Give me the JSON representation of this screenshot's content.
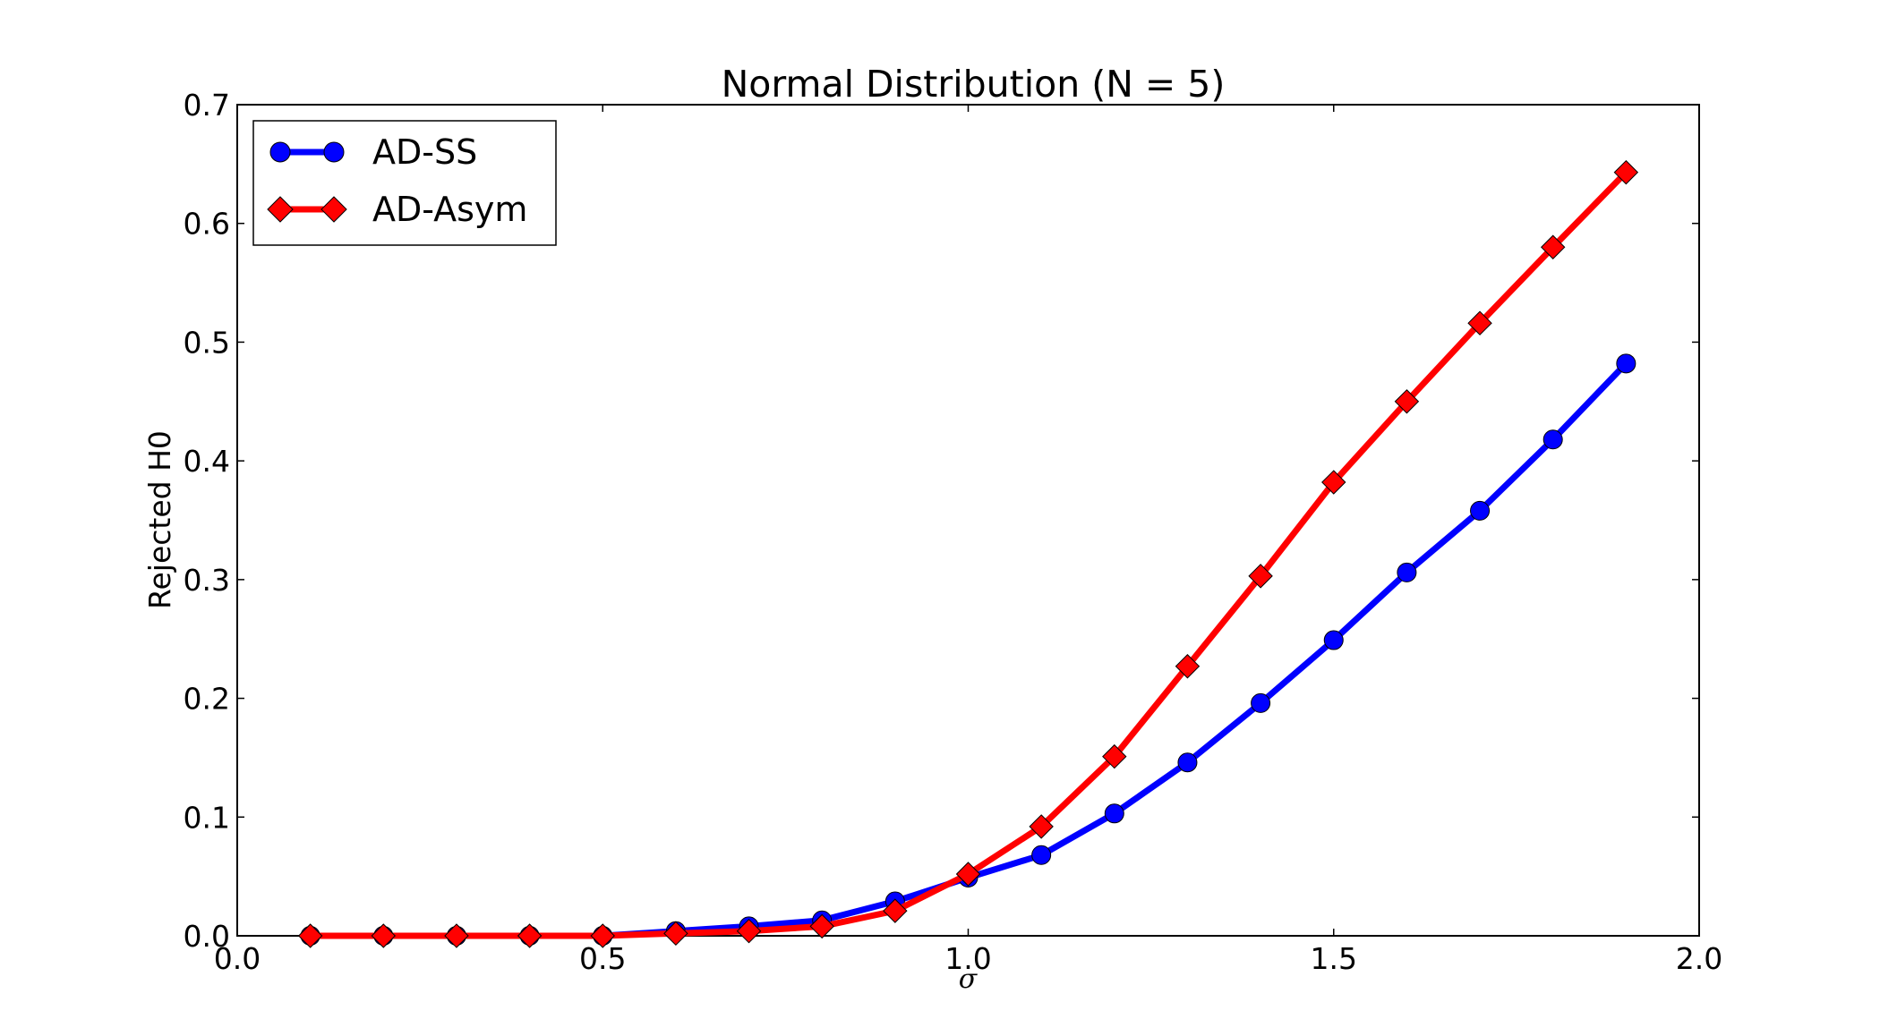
{
  "chart_data": {
    "type": "line",
    "title": "Normal Distribution (N = 5)",
    "xlabel": "σ",
    "ylabel": "Rejected H0",
    "xlim": [
      0.0,
      2.0
    ],
    "ylim": [
      0.0,
      0.7
    ],
    "xticks": [
      "0.0",
      "0.5",
      "1.0",
      "1.5",
      "2.0"
    ],
    "yticks": [
      "0.0",
      "0.1",
      "0.2",
      "0.3",
      "0.4",
      "0.5",
      "0.6",
      "0.7"
    ],
    "grid": false,
    "legend_position": "top-left",
    "x": [
      0.1,
      0.2,
      0.3,
      0.4,
      0.5,
      0.6,
      0.7,
      0.8,
      0.9,
      1.0,
      1.1,
      1.2,
      1.3,
      1.4,
      1.5,
      1.6,
      1.7,
      1.8,
      1.9
    ],
    "series": [
      {
        "name": "AD-SS",
        "color": "#0000ff",
        "marker": "circle",
        "values": [
          0.0,
          0.0,
          0.0,
          0.0,
          0.0,
          0.004,
          0.008,
          0.013,
          0.029,
          0.049,
          0.068,
          0.103,
          0.146,
          0.196,
          0.249,
          0.306,
          0.358,
          0.418,
          0.482
        ]
      },
      {
        "name": "AD-Asym",
        "color": "#ff0000",
        "marker": "diamond",
        "values": [
          0.0,
          0.0,
          0.0,
          0.0,
          0.0,
          0.002,
          0.004,
          0.008,
          0.021,
          0.052,
          0.092,
          0.151,
          0.227,
          0.303,
          0.382,
          0.45,
          0.516,
          0.58,
          0.643
        ]
      }
    ]
  }
}
